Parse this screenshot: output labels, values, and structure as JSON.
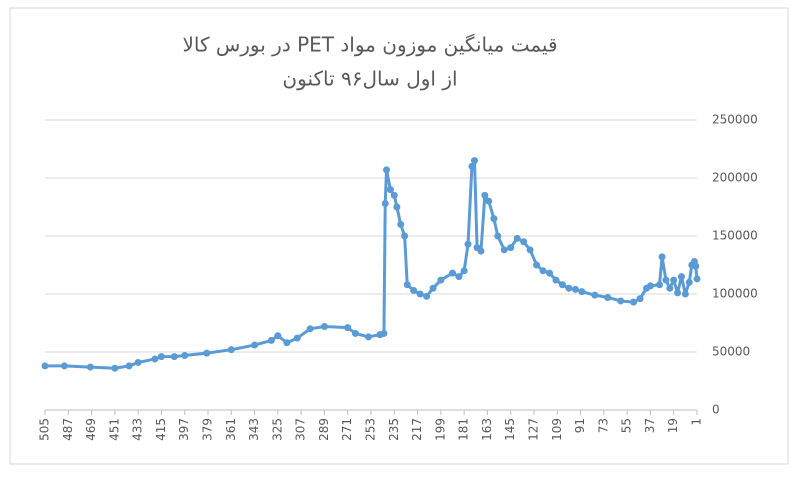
{
  "chart_data": {
    "type": "line",
    "title": "قیمت میانگین موزون مواد PET در بورس کالا",
    "subtitle": "از اول سال۹۶ تاکنون",
    "x": [
      505,
      490,
      470,
      451,
      440,
      433,
      420,
      415,
      405,
      397,
      380,
      361,
      343,
      330,
      325,
      318,
      310,
      300,
      289,
      271,
      265,
      255,
      246,
      243,
      242,
      241,
      238,
      235,
      233,
      230,
      227,
      225,
      220,
      215,
      210,
      205,
      199,
      190,
      185,
      181,
      178,
      175,
      173,
      171,
      168,
      165,
      162,
      158,
      155,
      150,
      145,
      140,
      135,
      130,
      125,
      120,
      115,
      110,
      105,
      100,
      95,
      90,
      80,
      70,
      60,
      50,
      45,
      40,
      37,
      30,
      28,
      25,
      22,
      19,
      16,
      13,
      10,
      7,
      5,
      3,
      2,
      1
    ],
    "series": [
      {
        "color": "#5b9bd5",
        "values": [
          38000,
          38000,
          37000,
          36000,
          38000,
          41000,
          44000,
          46000,
          46000,
          47000,
          49000,
          52000,
          56000,
          60000,
          64000,
          58000,
          62000,
          70000,
          72000,
          71000,
          66000,
          63000,
          65000,
          66000,
          178000,
          207000,
          190000,
          185000,
          175000,
          160000,
          150000,
          108000,
          103000,
          100000,
          98000,
          105000,
          112000,
          118000,
          115000,
          120000,
          143000,
          210000,
          215000,
          140000,
          137000,
          185000,
          180000,
          165000,
          150000,
          138000,
          140000,
          148000,
          145000,
          138000,
          125000,
          120000,
          118000,
          112000,
          108000,
          105000,
          104000,
          102000,
          99000,
          97000,
          94000,
          93000,
          96000,
          105000,
          107000,
          108000,
          132000,
          112000,
          105000,
          112000,
          101000,
          115000,
          100000,
          110000,
          125000,
          128000,
          124000,
          113000
        ]
      }
    ],
    "xlim": [
      505,
      1
    ],
    "xticks": [
      505,
      487,
      469,
      451,
      433,
      415,
      397,
      379,
      361,
      343,
      325,
      307,
      289,
      271,
      253,
      235,
      217,
      199,
      181,
      163,
      145,
      127,
      109,
      91,
      73,
      55,
      37,
      19,
      1
    ],
    "ylim": [
      0,
      250000
    ],
    "yticks": [
      0,
      50000,
      100000,
      150000,
      200000,
      250000
    ],
    "grid": true
  }
}
